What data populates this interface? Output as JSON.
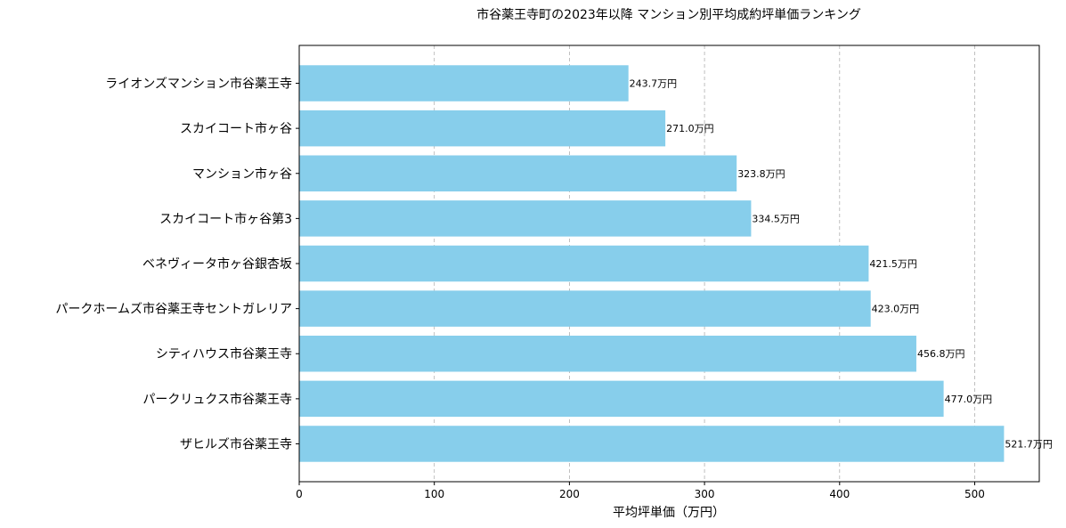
{
  "chart_data": {
    "type": "bar",
    "orientation": "horizontal",
    "title": "市谷薬王寺町の2023年以降 マンション別平均成約坪単価ランキング",
    "xlabel": "平均坪単価（万円）",
    "ylabel": "",
    "xlim": [
      0,
      547.8
    ],
    "xticks": [
      0,
      100,
      200,
      300,
      400,
      500
    ],
    "grid": "x-dashed",
    "bar_color": "#87CEEB",
    "categories": [
      "ライオンズマンション市谷薬王寺",
      "スカイコート市ヶ谷",
      "マンション市ヶ谷",
      "スカイコート市ヶ谷第3",
      "ベネヴィータ市ヶ谷銀杏坂",
      "パークホームズ市谷薬王寺セントガレリア",
      "シティハウス市谷薬王寺",
      "パークリュクス市谷薬王寺",
      "ザヒルズ市谷薬王寺"
    ],
    "values": [
      243.7,
      271.0,
      323.8,
      334.5,
      421.5,
      423.0,
      456.8,
      477.0,
      521.7
    ],
    "data_labels": [
      "243.7万円",
      "271.0万円",
      "323.8万円",
      "334.5万円",
      "421.5万円",
      "423.0万円",
      "456.8万円",
      "477.0万円",
      "521.7万円"
    ]
  }
}
